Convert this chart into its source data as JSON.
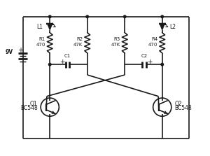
{
  "bg_color": "#ffffff",
  "line_color": "#1a1a1a",
  "line_width": 1.2,
  "fig_width": 3.0,
  "fig_height": 2.23,
  "dpi": 100,
  "labels": {
    "battery_voltage": "9V",
    "L1": "L1",
    "L2": "L2",
    "R1": "R1",
    "R1_val": "470",
    "R2": "R2",
    "R2_val": "47K",
    "R3": "R3",
    "R3_val": "47K",
    "R4": "R4",
    "R4_val": "470",
    "C1": "C1",
    "C2": "C2",
    "Q1": "Q1",
    "Q1_val": "BC548",
    "Q2": "Q2",
    "Q2_val": "BC548"
  }
}
